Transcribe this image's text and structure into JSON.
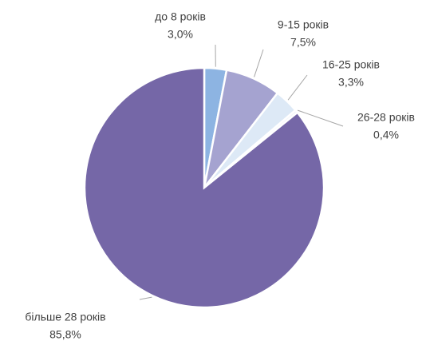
{
  "chart_data": {
    "type": "pie",
    "categories": [
      "до 8 років",
      "9-15 років",
      "16-25 років",
      "26-28 років",
      "більше 28 років"
    ],
    "values": [
      3.0,
      7.5,
      3.3,
      0.4,
      85.8
    ],
    "value_labels": [
      "3,0%",
      "7,5%",
      "3,3%",
      "0,4%",
      "85,8%"
    ],
    "colors": [
      "#8db4e2",
      "#a5a3d0",
      "#dde9f6",
      "#f4f6fb",
      "#7567a7"
    ]
  }
}
